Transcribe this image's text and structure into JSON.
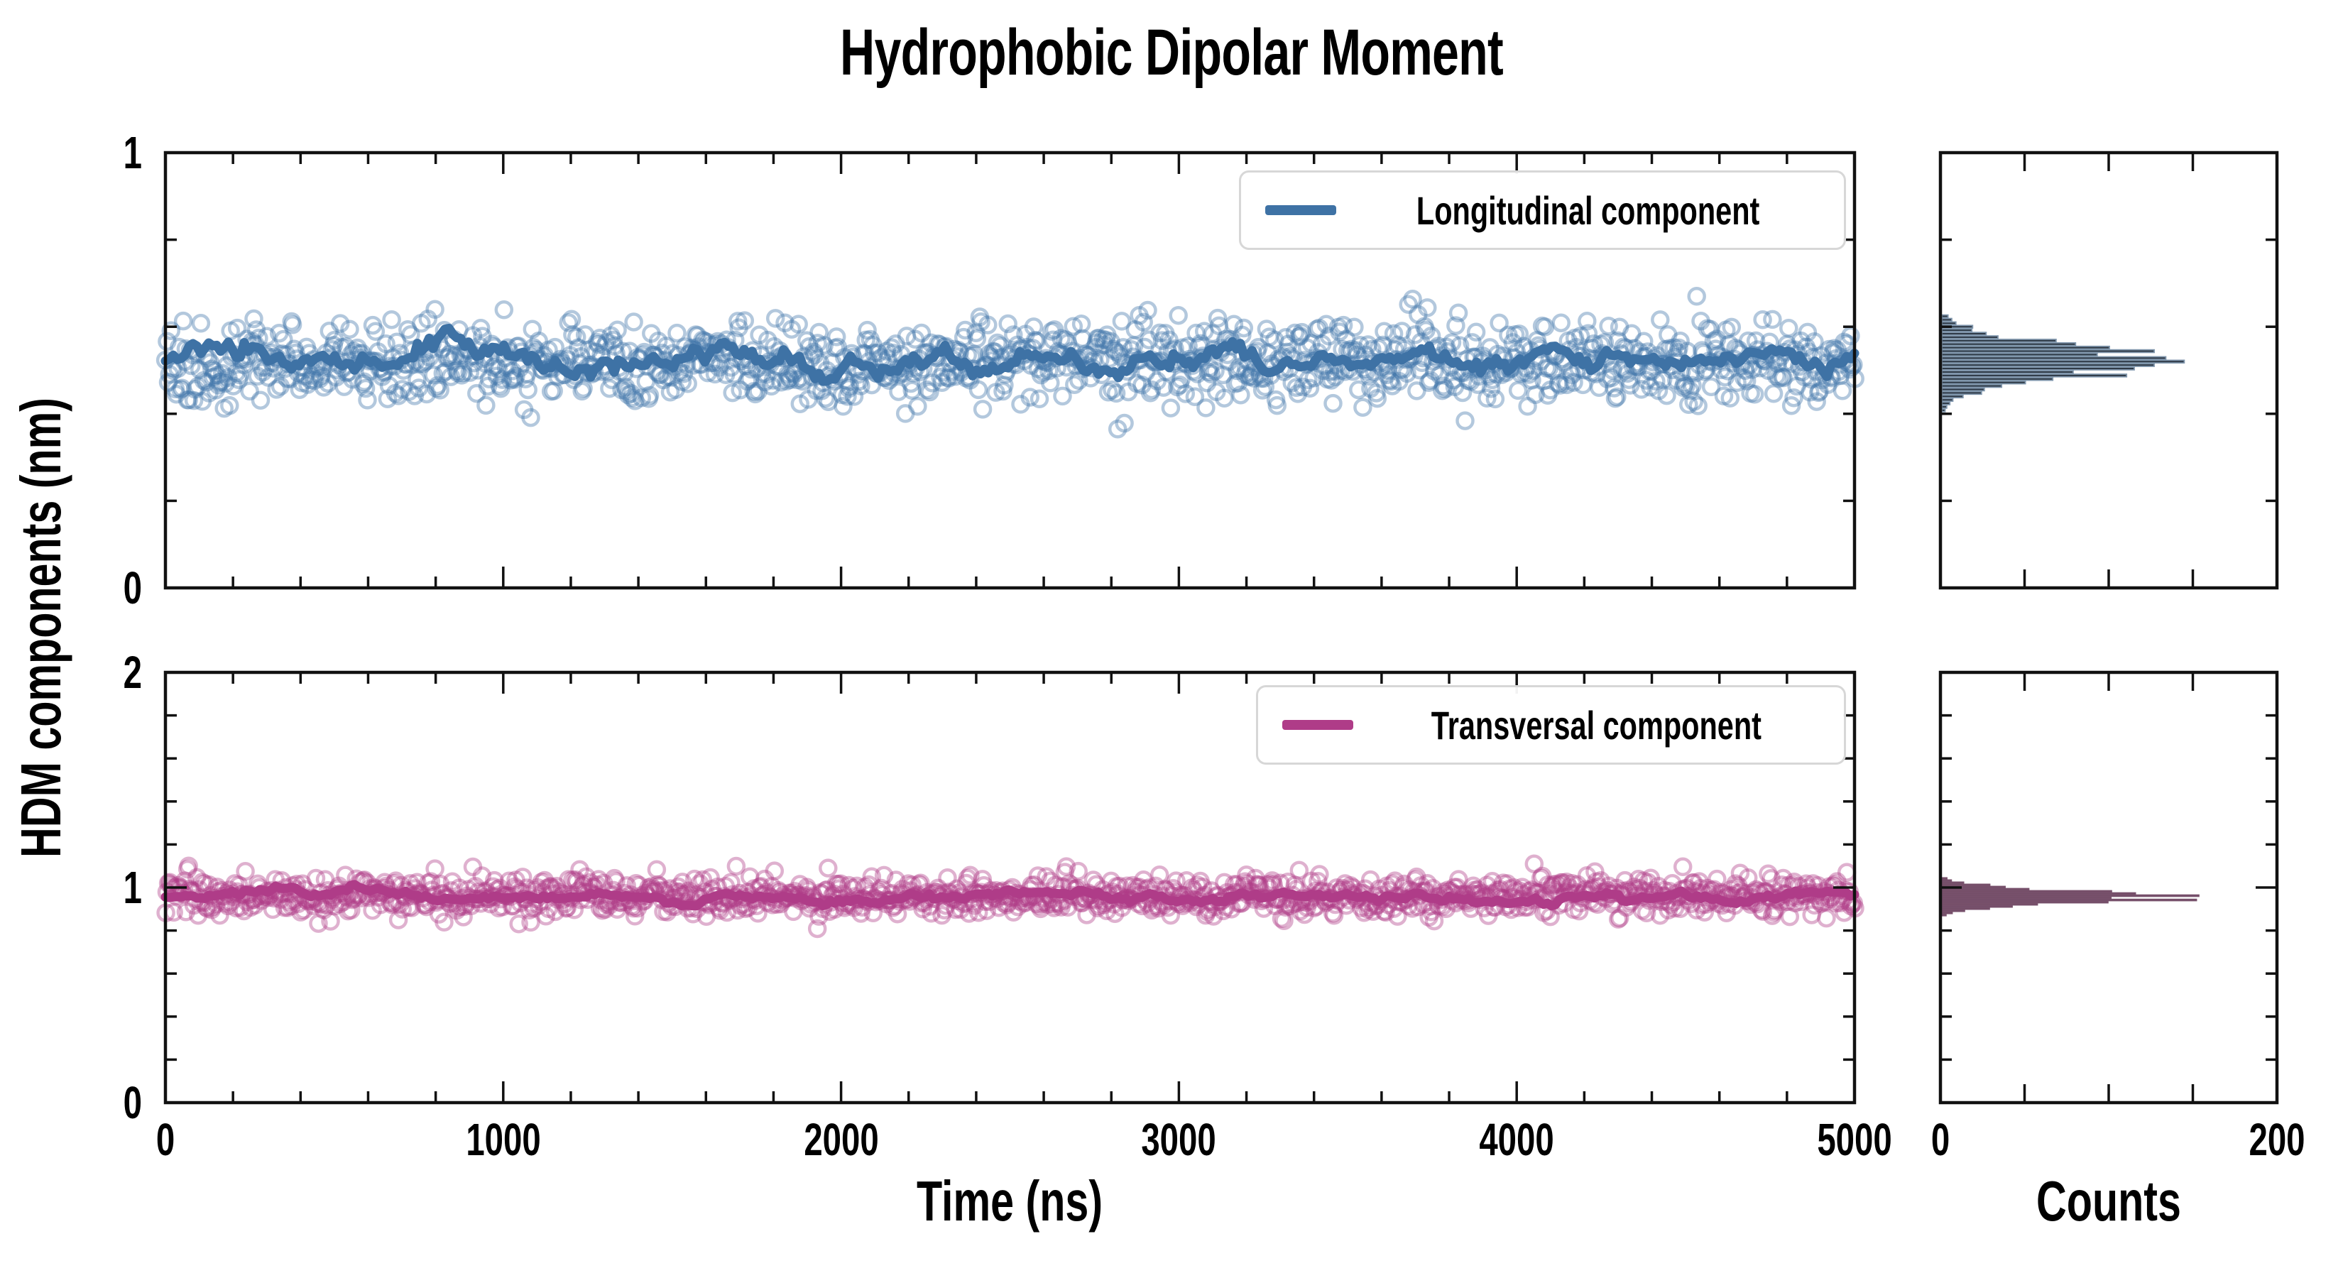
{
  "title": "Hydrophobic Dipolar Moment",
  "axes": {
    "ylabel": "HDM components (nm)",
    "xlabel_time": "Time (ns)",
    "xlabel_counts": "Counts"
  },
  "chart_data": {
    "type": "scatter",
    "description": "Two stacked time-series panels (scatter of instantaneous values + thick running-mean line) with matching horizontal histograms of counts on the right.",
    "x": {
      "label": "Time (ns)",
      "range": [
        0,
        5000
      ],
      "major_ticks": [
        0,
        1000,
        2000,
        3000,
        4000,
        5000
      ],
      "minor_step": 200
    },
    "counts_axis": {
      "label": "Counts",
      "range": [
        0,
        200
      ],
      "interior_ticks": [
        50,
        100,
        150
      ],
      "labeled_ticks": [
        0,
        200
      ]
    },
    "panels": [
      {
        "name": "Longitudinal component",
        "line_color": "#3E72A5",
        "marker_color": "rgba(64,118,171,0.40)",
        "ylim": [
          0,
          1
        ],
        "ytick_labels": [
          "0",
          "1"
        ],
        "yminor_step": 0.2,
        "scatter_mean": 0.52,
        "scatter_sd": 0.045,
        "line_band": 0.02,
        "n_points": 1250,
        "histogram": {
          "fill": "#2B3642",
          "edge": "#8096AC",
          "center": 0.52,
          "sd": 0.038,
          "peak_count": 128,
          "bin_width": 0.008,
          "range": [
            0.395,
            0.665
          ]
        }
      },
      {
        "name": "Transversal component",
        "line_color": "#AF3C88",
        "marker_color": "rgba(175,60,136,0.40)",
        "ylim": [
          0,
          2
        ],
        "ytick_labels": [
          "0",
          "1",
          "2"
        ],
        "yminor_step": 0.2,
        "scatter_mean": 0.96,
        "scatter_sd": 0.045,
        "line_band": 0.015,
        "n_points": 1250,
        "histogram": {
          "fill": "#33262F",
          "edge": "#77506B",
          "center": 0.955,
          "sd": 0.03,
          "peak_count": 134,
          "bin_width": 0.01,
          "range": [
            0.845,
            1.075
          ]
        }
      }
    ],
    "legend_position": "upper right",
    "grid": false
  }
}
